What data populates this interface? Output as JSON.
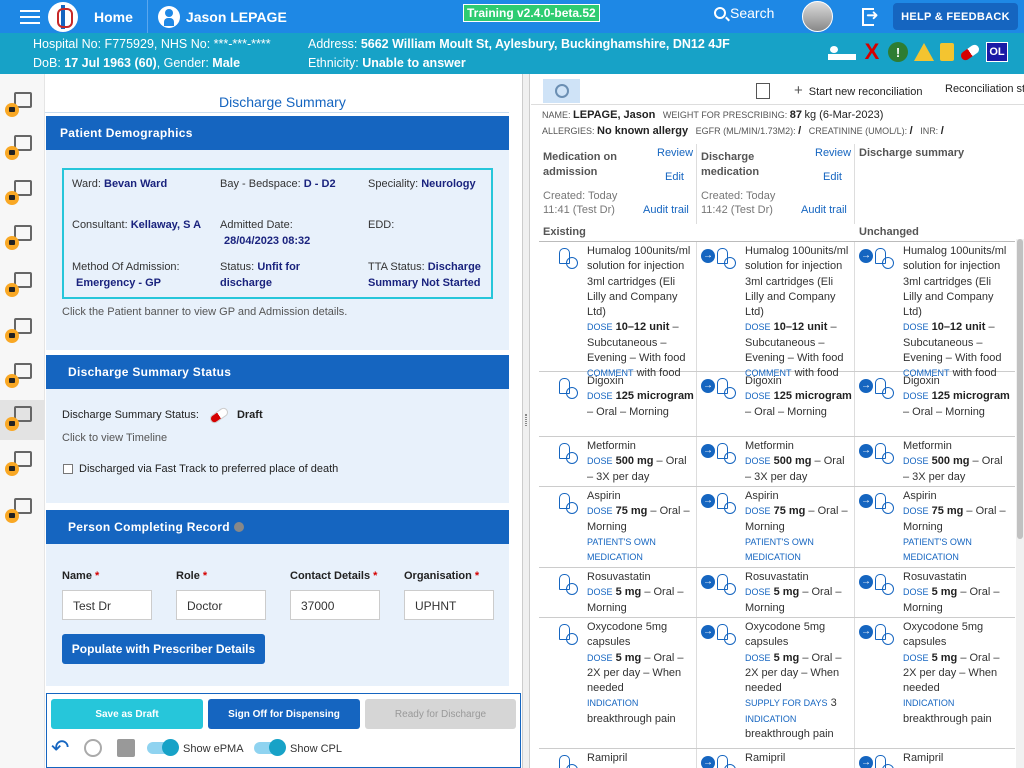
{
  "topbar": {
    "home": "Home",
    "user": "Jason LEPAGE",
    "training": "Training v2.4.0-beta.52",
    "search": "Search",
    "help": "HELP & FEEDBACK"
  },
  "banner": {
    "hospital": "Hospital No: F775929, NHS No: ***-***-****",
    "dob_label": "DoB: ",
    "dob": "17 Jul 1963 (60)",
    "gender_label": ", Gender: ",
    "gender": "Male",
    "address_label": "Address: ",
    "address": "5662 William Moult St, Aylesbury, Buckinghamshire, DN12 4JF",
    "ethnicity_label": "Ethnicity: ",
    "ethnicity": "Unable to answer",
    "badge_x": "X",
    "badge_excl": "!",
    "badge_ol": "OL"
  },
  "discharge": {
    "title": "Discharge Summary",
    "demographics": {
      "header": "Patient Demographics",
      "ward_label": "Ward:",
      "ward": "Bevan Ward",
      "bay_label": "Bay - Bedspace:",
      "bay": "D - D2",
      "speciality_label": "Speciality:",
      "speciality": "Neurology",
      "consultant_label": "Consultant:",
      "consultant": "Kellaway, S A",
      "admitted_label": "Admitted Date:",
      "admitted": "28/04/2023 08:32",
      "edd_label": "EDD:",
      "method_label": "Method Of Admission:",
      "method": "Emergency - GP",
      "status_label": "Status:",
      "status": "Unfit for discharge",
      "tta_label": "TTA Status:",
      "tta": "Discharge Summary Not Started",
      "hint": "Click the Patient banner to view GP and Admission details."
    },
    "status_card": {
      "header": "Discharge Summary Status",
      "label": "Discharge Summary Status:",
      "value": "Draft",
      "timeline": "Click to view Timeline",
      "fasttrack": "Discharged via Fast Track to preferred place of death"
    },
    "person": {
      "header": "Person Completing Record",
      "name_label": "Name",
      "role_label": "Role",
      "contact_label": "Contact Details",
      "org_label": "Organisation",
      "req": "*",
      "name": "Test Dr",
      "role": "Doctor",
      "contact": "37000",
      "org": "UPHNT",
      "populate": "Populate with Prescriber Details"
    },
    "footer": {
      "save_draft": "Save as Draft",
      "sign_off": "Sign Off for Dispensing",
      "ready": "Ready for Discharge",
      "show_epma": "Show ePMA",
      "show_cpl": "Show CPL",
      "colors": {
        "save": "#26c6da",
        "sign": "#1565c0",
        "ready": "#d6d6d6"
      }
    }
  },
  "rec": {
    "start": "Start new reconciliation",
    "status": "Reconciliation st",
    "name_label": "NAME:",
    "name": "LEPAGE, Jason",
    "weight_label": "WEIGHT FOR PRESCRIBING:",
    "weight": "87",
    "weight_unit": "kg (6-Mar-2023)",
    "allergies_label": "ALLERGIES:",
    "allergies": "No known allergy",
    "egfr_label": "EGFR (ML/MIN/1.73M2):",
    "egfr": "/",
    "creat_label": "CREATININE (UMOL/L):",
    "creat": "/",
    "inr_label": "INR:",
    "inr": "/",
    "columns": [
      {
        "title": "Medication on admission",
        "review": "Review",
        "edit": "Edit",
        "created": "Created: Today",
        "time": "11:41 (Test Dr)",
        "audit": "Audit trail"
      },
      {
        "title": "Discharge medication",
        "review": "Review",
        "edit": "Edit",
        "created": "Created: Today",
        "time": "11:42 (Test Dr)",
        "audit": "Audit trail"
      },
      {
        "title": "Discharge summary"
      }
    ],
    "sections": {
      "existing": "Existing",
      "unchanged": "Unchanged"
    },
    "meds": [
      {
        "name": "Humalog 100units/ml solution for injection 3ml cartridges (Eli Lilly and Company Ltd)",
        "dose": "10–12 unit",
        "route": " – Subcutaneous – Evening – With food",
        "extra_label": "COMMENT",
        "extra": "with food",
        "extra_label2": "",
        "extra2": ""
      },
      {
        "name": "Digoxin",
        "dose": "125 microgram",
        "route": " – Oral – Morning",
        "extra_label": "",
        "extra": "",
        "extra_label2": "",
        "extra2": ""
      },
      {
        "name": "Metformin",
        "dose": "500 mg",
        "route": " – Oral – 3X per day",
        "extra_label": "",
        "extra": "",
        "extra_label2": "",
        "extra2": ""
      },
      {
        "name": "Aspirin",
        "dose": "75 mg",
        "route": " – Oral – Morning",
        "extra_label": "PATIENT'S OWN MEDICATION",
        "extra": "",
        "extra_label2": "",
        "extra2": ""
      },
      {
        "name": "Rosuvastatin",
        "dose": "5 mg",
        "route": " – Oral – Morning",
        "extra_label": "",
        "extra": "",
        "extra_label2": "",
        "extra2": ""
      },
      {
        "name": "Oxycodone 5mg capsules",
        "dose": "5 mg",
        "route": " – Oral – 2X per day – When needed",
        "extra_label": "INDICATION",
        "extra": "breakthrough pain",
        "supply_label": "SUPPLY FOR DAYS",
        "supply": "3"
      },
      {
        "name": "Ramipril",
        "dose": "",
        "route": "",
        "extra_label": "",
        "extra": ""
      }
    ],
    "dose_label": "DOSE"
  }
}
